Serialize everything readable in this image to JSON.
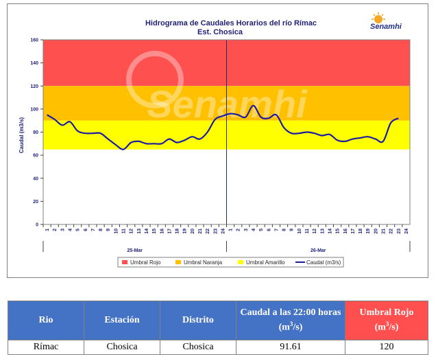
{
  "chart_data": {
    "type": "line",
    "title": "Hidrograma de Caudales Horarios del río Rímac",
    "subtitle": "Est. Chosica",
    "brand": "Senamhi",
    "watermark": "Senamhi",
    "ylabel": "Caudal  (m3/s)",
    "ylim": [
      0,
      160
    ],
    "yticks": [
      "0",
      "20",
      "40",
      "60",
      "80",
      "100",
      "120",
      "140",
      "160"
    ],
    "hour_ticks": [
      "1",
      "2",
      "3",
      "4",
      "5",
      "6",
      "7",
      "8",
      "9",
      "10",
      "11",
      "12",
      "13",
      "14",
      "15",
      "16",
      "17",
      "18",
      "19",
      "20",
      "21",
      "22",
      "23",
      "24",
      "1",
      "2",
      "3",
      "4",
      "5",
      "6",
      "7",
      "8",
      "9",
      "10",
      "11",
      "12",
      "13",
      "14",
      "15",
      "16",
      "17",
      "18",
      "19",
      "20",
      "21",
      "22",
      "23",
      "24"
    ],
    "day_labels": [
      "25-Mar",
      "26-Mar"
    ],
    "bands": [
      {
        "name": "Umbral Rojo",
        "from": 120,
        "to": 160,
        "color": "#ff5050"
      },
      {
        "name": "Umbral Naranja",
        "from": 90,
        "to": 120,
        "color": "#ffc000"
      },
      {
        "name": "Umbral Amarillo",
        "from": 65,
        "to": 90,
        "color": "#ffff00"
      }
    ],
    "series": [
      {
        "name": "Caudal (m3/s)",
        "color": "#1a1aa6",
        "x": [
          0,
          1,
          2,
          3,
          4,
          5,
          6,
          7,
          8,
          9,
          10,
          11,
          12,
          13,
          14,
          15,
          16,
          17,
          18,
          19,
          20,
          21,
          22,
          23,
          24,
          25,
          26,
          27,
          28,
          29,
          30,
          31,
          32,
          33,
          34,
          35,
          36,
          37,
          38,
          39,
          40,
          41,
          42,
          43,
          44,
          45,
          46
        ],
        "values": [
          95,
          91,
          86,
          89,
          81,
          79,
          79,
          79,
          74,
          69,
          65,
          71,
          72,
          70,
          70,
          70,
          74,
          71,
          73,
          76,
          74,
          80,
          91,
          94,
          96,
          95,
          93,
          103,
          93,
          92,
          95,
          84,
          79,
          79,
          80,
          79,
          77,
          78,
          73,
          72,
          74,
          75,
          76,
          74,
          72,
          88,
          92
        ]
      }
    ],
    "legend": [
      "Umbral Rojo",
      "Umbral Naranja",
      "Umbral Amarillo",
      "Caudal (m3/s)"
    ],
    "legend_position": "bottom",
    "day_divider_after_hour": 24
  },
  "table": {
    "headers": [
      "Rio",
      "Estación",
      "Distrito",
      "Caudal a las 22:00 horas",
      "(m",
      "3",
      "/s)",
      "Umbral Rojo",
      "(m",
      "3",
      "/s)"
    ],
    "row": [
      "Rímac",
      "Chosica",
      "Chosica",
      "91.61",
      "120"
    ]
  }
}
